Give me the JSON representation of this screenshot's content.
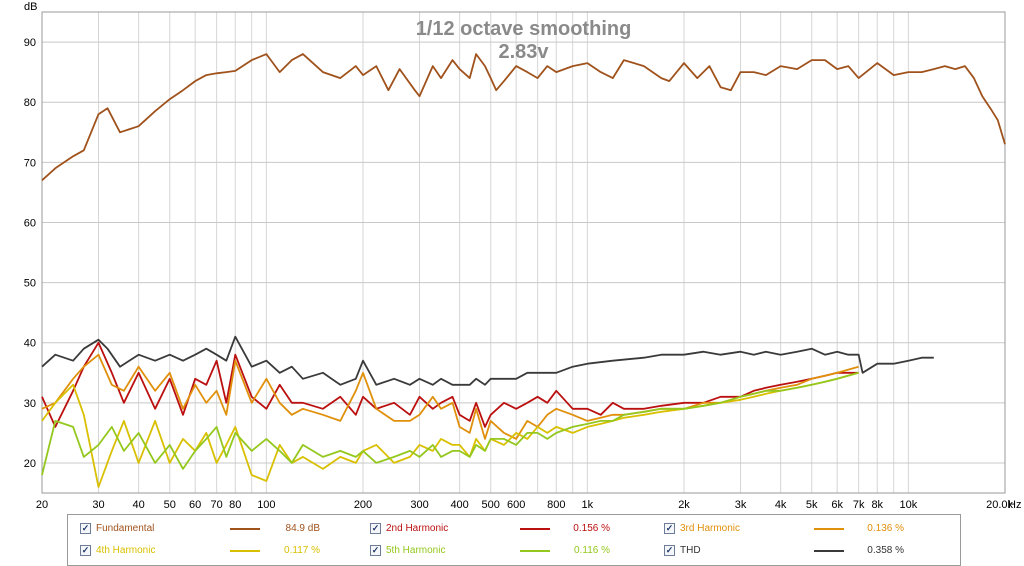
{
  "chart_data": {
    "type": "line",
    "title": "1/12 octave smoothing",
    "subtitle": "2.83v",
    "ylabel": "dB",
    "xlabel": "Hz",
    "x_scale": "log",
    "xlim": [
      20,
      20000
    ],
    "ylim": [
      15,
      95
    ],
    "grid": true,
    "y_ticks": [
      20,
      30,
      40,
      50,
      60,
      70,
      80,
      90
    ],
    "x_ticks": [
      {
        "v": 20,
        "label": "20"
      },
      {
        "v": 30,
        "label": "30"
      },
      {
        "v": 40,
        "label": "40"
      },
      {
        "v": 50,
        "label": "50"
      },
      {
        "v": 60,
        "label": "60"
      },
      {
        "v": 70,
        "label": "70"
      },
      {
        "v": 80,
        "label": "80"
      },
      {
        "v": 100,
        "label": "100"
      },
      {
        "v": 200,
        "label": "200"
      },
      {
        "v": 300,
        "label": "300"
      },
      {
        "v": 400,
        "label": "400"
      },
      {
        "v": 500,
        "label": "500"
      },
      {
        "v": 600,
        "label": "600"
      },
      {
        "v": 800,
        "label": "800"
      },
      {
        "v": 1000,
        "label": "1k"
      },
      {
        "v": 2000,
        "label": "2k"
      },
      {
        "v": 3000,
        "label": "3k"
      },
      {
        "v": 4000,
        "label": "4k"
      },
      {
        "v": 5000,
        "label": "5k"
      },
      {
        "v": 6000,
        "label": "6k"
      },
      {
        "v": 7000,
        "label": "7k"
      },
      {
        "v": 8000,
        "label": "8k"
      },
      {
        "v": 10000,
        "label": "10k"
      },
      {
        "v": 20000,
        "label": "20.0k"
      }
    ],
    "series": [
      {
        "name": "Fundamental",
        "color": "#a0521c",
        "value_label": "84.9 dB",
        "x": [
          20,
          22,
          25,
          27,
          30,
          32,
          35,
          40,
          45,
          50,
          55,
          60,
          65,
          70,
          75,
          80,
          90,
          100,
          110,
          120,
          130,
          150,
          170,
          190,
          200,
          220,
          240,
          260,
          290,
          300,
          330,
          350,
          380,
          400,
          430,
          450,
          480,
          500,
          520,
          550,
          600,
          650,
          700,
          750,
          800,
          900,
          1000,
          1100,
          1200,
          1300,
          1500,
          1700,
          1800,
          2000,
          2200,
          2400,
          2600,
          2800,
          3000,
          3300,
          3600,
          4000,
          4500,
          5000,
          5500,
          6000,
          6500,
          7000,
          8000,
          9000,
          10000,
          11000,
          12000,
          13000,
          14000,
          15000,
          16000,
          17000,
          18000,
          19000,
          20000
        ],
        "y": [
          67,
          69,
          71,
          72,
          78,
          79,
          75,
          76,
          78.5,
          80.5,
          82,
          83.5,
          84.5,
          84.8,
          85,
          85.2,
          87,
          88,
          85,
          87,
          88,
          85,
          84,
          86,
          84.5,
          86,
          82,
          85.5,
          82,
          81,
          86,
          84,
          87,
          85.5,
          84,
          88,
          86,
          84,
          82,
          83.5,
          86,
          85,
          84,
          86,
          85,
          86,
          86.5,
          85,
          84,
          87,
          86,
          84,
          83.5,
          86.5,
          84,
          86,
          82.5,
          82,
          85,
          85,
          84.5,
          86,
          85.5,
          87,
          87,
          85.5,
          86,
          84,
          86.5,
          84.5,
          85,
          85,
          85.5,
          86,
          85.5,
          86,
          84,
          81,
          79,
          77,
          73
        ]
      },
      {
        "name": "2nd Harmonic",
        "color": "#bb1010",
        "value_label": "0.156 %",
        "x": [
          20,
          22,
          25,
          27,
          30,
          33,
          36,
          40,
          45,
          50,
          55,
          60,
          65,
          70,
          75,
          80,
          90,
          100,
          110,
          120,
          130,
          150,
          170,
          190,
          200,
          220,
          250,
          280,
          300,
          330,
          350,
          380,
          400,
          430,
          450,
          480,
          500,
          550,
          600,
          650,
          700,
          750,
          800,
          900,
          1000,
          1100,
          1200,
          1300,
          1500,
          1700,
          2000,
          2300,
          2600,
          3000,
          3300,
          3600,
          4000,
          4500,
          5000,
          5500,
          6000,
          7000
        ],
        "y": [
          31,
          26,
          32,
          36,
          40,
          35,
          30,
          35,
          29,
          34,
          28,
          34,
          33,
          37,
          30,
          38,
          31,
          29,
          33,
          30,
          30,
          29,
          31,
          28,
          31,
          29,
          30,
          28,
          31,
          29,
          30,
          31,
          28,
          27,
          30,
          26,
          28,
          30,
          29,
          30,
          31,
          30,
          32,
          29,
          29,
          28,
          30,
          29,
          29,
          29.5,
          30,
          30,
          31,
          31,
          32,
          32.5,
          33,
          33.5,
          34,
          34.5,
          35,
          35
        ]
      },
      {
        "name": "3rd Harmonic",
        "color": "#e0900a",
        "value_label": "0.136 %",
        "x": [
          20,
          22,
          25,
          27,
          30,
          33,
          36,
          40,
          45,
          50,
          55,
          60,
          65,
          70,
          75,
          80,
          90,
          100,
          110,
          120,
          130,
          150,
          170,
          190,
          200,
          220,
          250,
          280,
          300,
          330,
          350,
          380,
          400,
          430,
          450,
          480,
          500,
          550,
          600,
          650,
          700,
          750,
          800,
          900,
          1000,
          1100,
          1200,
          1300,
          1500,
          1700,
          2000,
          2300,
          2600,
          3000,
          3300,
          3600,
          4000,
          4500,
          5000,
          5500,
          6000,
          7000
        ],
        "y": [
          29,
          30,
          34,
          36,
          38,
          33,
          32,
          36,
          32,
          35,
          29,
          33,
          30,
          32,
          28,
          37,
          30,
          34,
          30,
          28,
          29,
          28,
          27,
          32,
          35,
          29,
          27,
          27,
          28,
          31,
          29,
          30,
          26,
          25,
          29,
          24,
          27,
          25,
          24,
          27,
          26,
          28,
          29,
          28,
          27,
          27.5,
          28,
          28,
          28.5,
          29,
          29,
          30,
          30,
          31,
          31.5,
          32,
          32.5,
          33,
          34,
          34.5,
          35,
          36
        ]
      },
      {
        "name": "4th Harmonic",
        "color": "#d8c000",
        "value_label": "0.117 %",
        "x": [
          20,
          22,
          25,
          27,
          30,
          33,
          36,
          40,
          45,
          50,
          55,
          60,
          65,
          70,
          75,
          80,
          90,
          100,
          110,
          120,
          130,
          150,
          170,
          190,
          200,
          220,
          250,
          280,
          300,
          330,
          350,
          380,
          400,
          430,
          450,
          480,
          500,
          550,
          600,
          650,
          700,
          750,
          800,
          900,
          1000,
          1100,
          1200,
          1300,
          1500,
          1700,
          2000,
          2300,
          2600,
          3000,
          3300,
          3600,
          4000,
          4500,
          5000,
          5500,
          6000,
          7000
        ],
        "y": [
          27,
          30,
          33,
          28,
          16,
          22,
          27,
          20,
          27,
          20,
          24,
          22,
          25,
          20,
          23,
          26,
          18,
          17,
          23,
          20,
          21,
          19,
          21,
          20,
          22,
          23,
          20,
          21,
          23,
          22,
          24,
          23,
          23,
          21,
          24,
          22,
          24,
          23,
          25,
          24,
          26,
          25,
          26,
          25,
          26,
          26.5,
          27,
          27.5,
          28,
          28.5,
          29,
          29.5,
          30,
          30.5,
          31,
          31.5,
          32,
          32.5,
          33,
          33.5,
          34,
          35
        ]
      },
      {
        "name": "5th Harmonic",
        "color": "#94c81e",
        "value_label": "0.116 %",
        "x": [
          20,
          22,
          25,
          27,
          30,
          33,
          36,
          40,
          45,
          50,
          55,
          60,
          65,
          70,
          75,
          80,
          90,
          100,
          110,
          120,
          130,
          150,
          170,
          190,
          200,
          220,
          250,
          280,
          300,
          330,
          350,
          380,
          400,
          430,
          450,
          480,
          500,
          550,
          600,
          650,
          700,
          750,
          800,
          900,
          1000,
          1100,
          1200,
          1300,
          1500,
          1700,
          2000,
          2300,
          2600,
          3000,
          3300,
          3600,
          4000,
          4500,
          5000,
          5500,
          6000,
          7000
        ],
        "y": [
          18,
          27,
          26,
          21,
          23,
          26,
          22,
          25,
          20,
          23,
          19,
          22,
          24,
          26,
          21,
          25,
          22,
          24,
          22,
          20,
          23,
          21,
          22,
          21,
          22,
          20,
          21,
          22,
          21,
          23,
          21,
          22,
          22,
          21,
          23,
          22,
          24,
          24,
          23,
          25,
          25,
          24,
          25,
          26,
          26.5,
          27,
          27,
          28,
          28.5,
          29,
          29,
          29.5,
          30,
          31,
          31.5,
          32,
          32,
          32.5,
          33,
          33.5,
          34,
          35
        ]
      },
      {
        "name": "THD",
        "color": "#3a3a3a",
        "value_label": "0.358 %",
        "x": [
          20,
          22,
          25,
          27,
          30,
          32,
          35,
          40,
          45,
          50,
          55,
          60,
          65,
          70,
          75,
          80,
          90,
          100,
          110,
          120,
          130,
          150,
          170,
          190,
          200,
          220,
          250,
          280,
          300,
          330,
          350,
          380,
          400,
          430,
          450,
          480,
          500,
          550,
          600,
          650,
          700,
          750,
          800,
          900,
          1000,
          1200,
          1500,
          1700,
          2000,
          2300,
          2600,
          3000,
          3300,
          3600,
          4000,
          4500,
          5000,
          5500,
          6000,
          6500,
          7000,
          7200,
          8000,
          9000,
          10000,
          11000,
          12000
        ],
        "y": [
          36,
          38,
          37,
          39,
          40.5,
          39,
          36,
          38,
          37,
          38,
          37,
          38,
          39,
          38,
          37,
          41,
          36,
          37,
          35,
          36,
          34,
          35,
          33,
          34,
          37,
          33,
          34,
          33,
          34,
          33,
          34,
          33,
          33,
          33,
          34,
          33,
          34,
          34,
          34,
          35,
          35,
          35,
          35,
          36,
          36.5,
          37,
          37.5,
          38,
          38,
          38.5,
          38,
          38.5,
          38,
          38.5,
          38,
          38.5,
          39,
          38,
          38.5,
          38,
          38,
          35,
          36.5,
          36.5,
          37,
          37.5,
          37.5
        ]
      }
    ]
  }
}
